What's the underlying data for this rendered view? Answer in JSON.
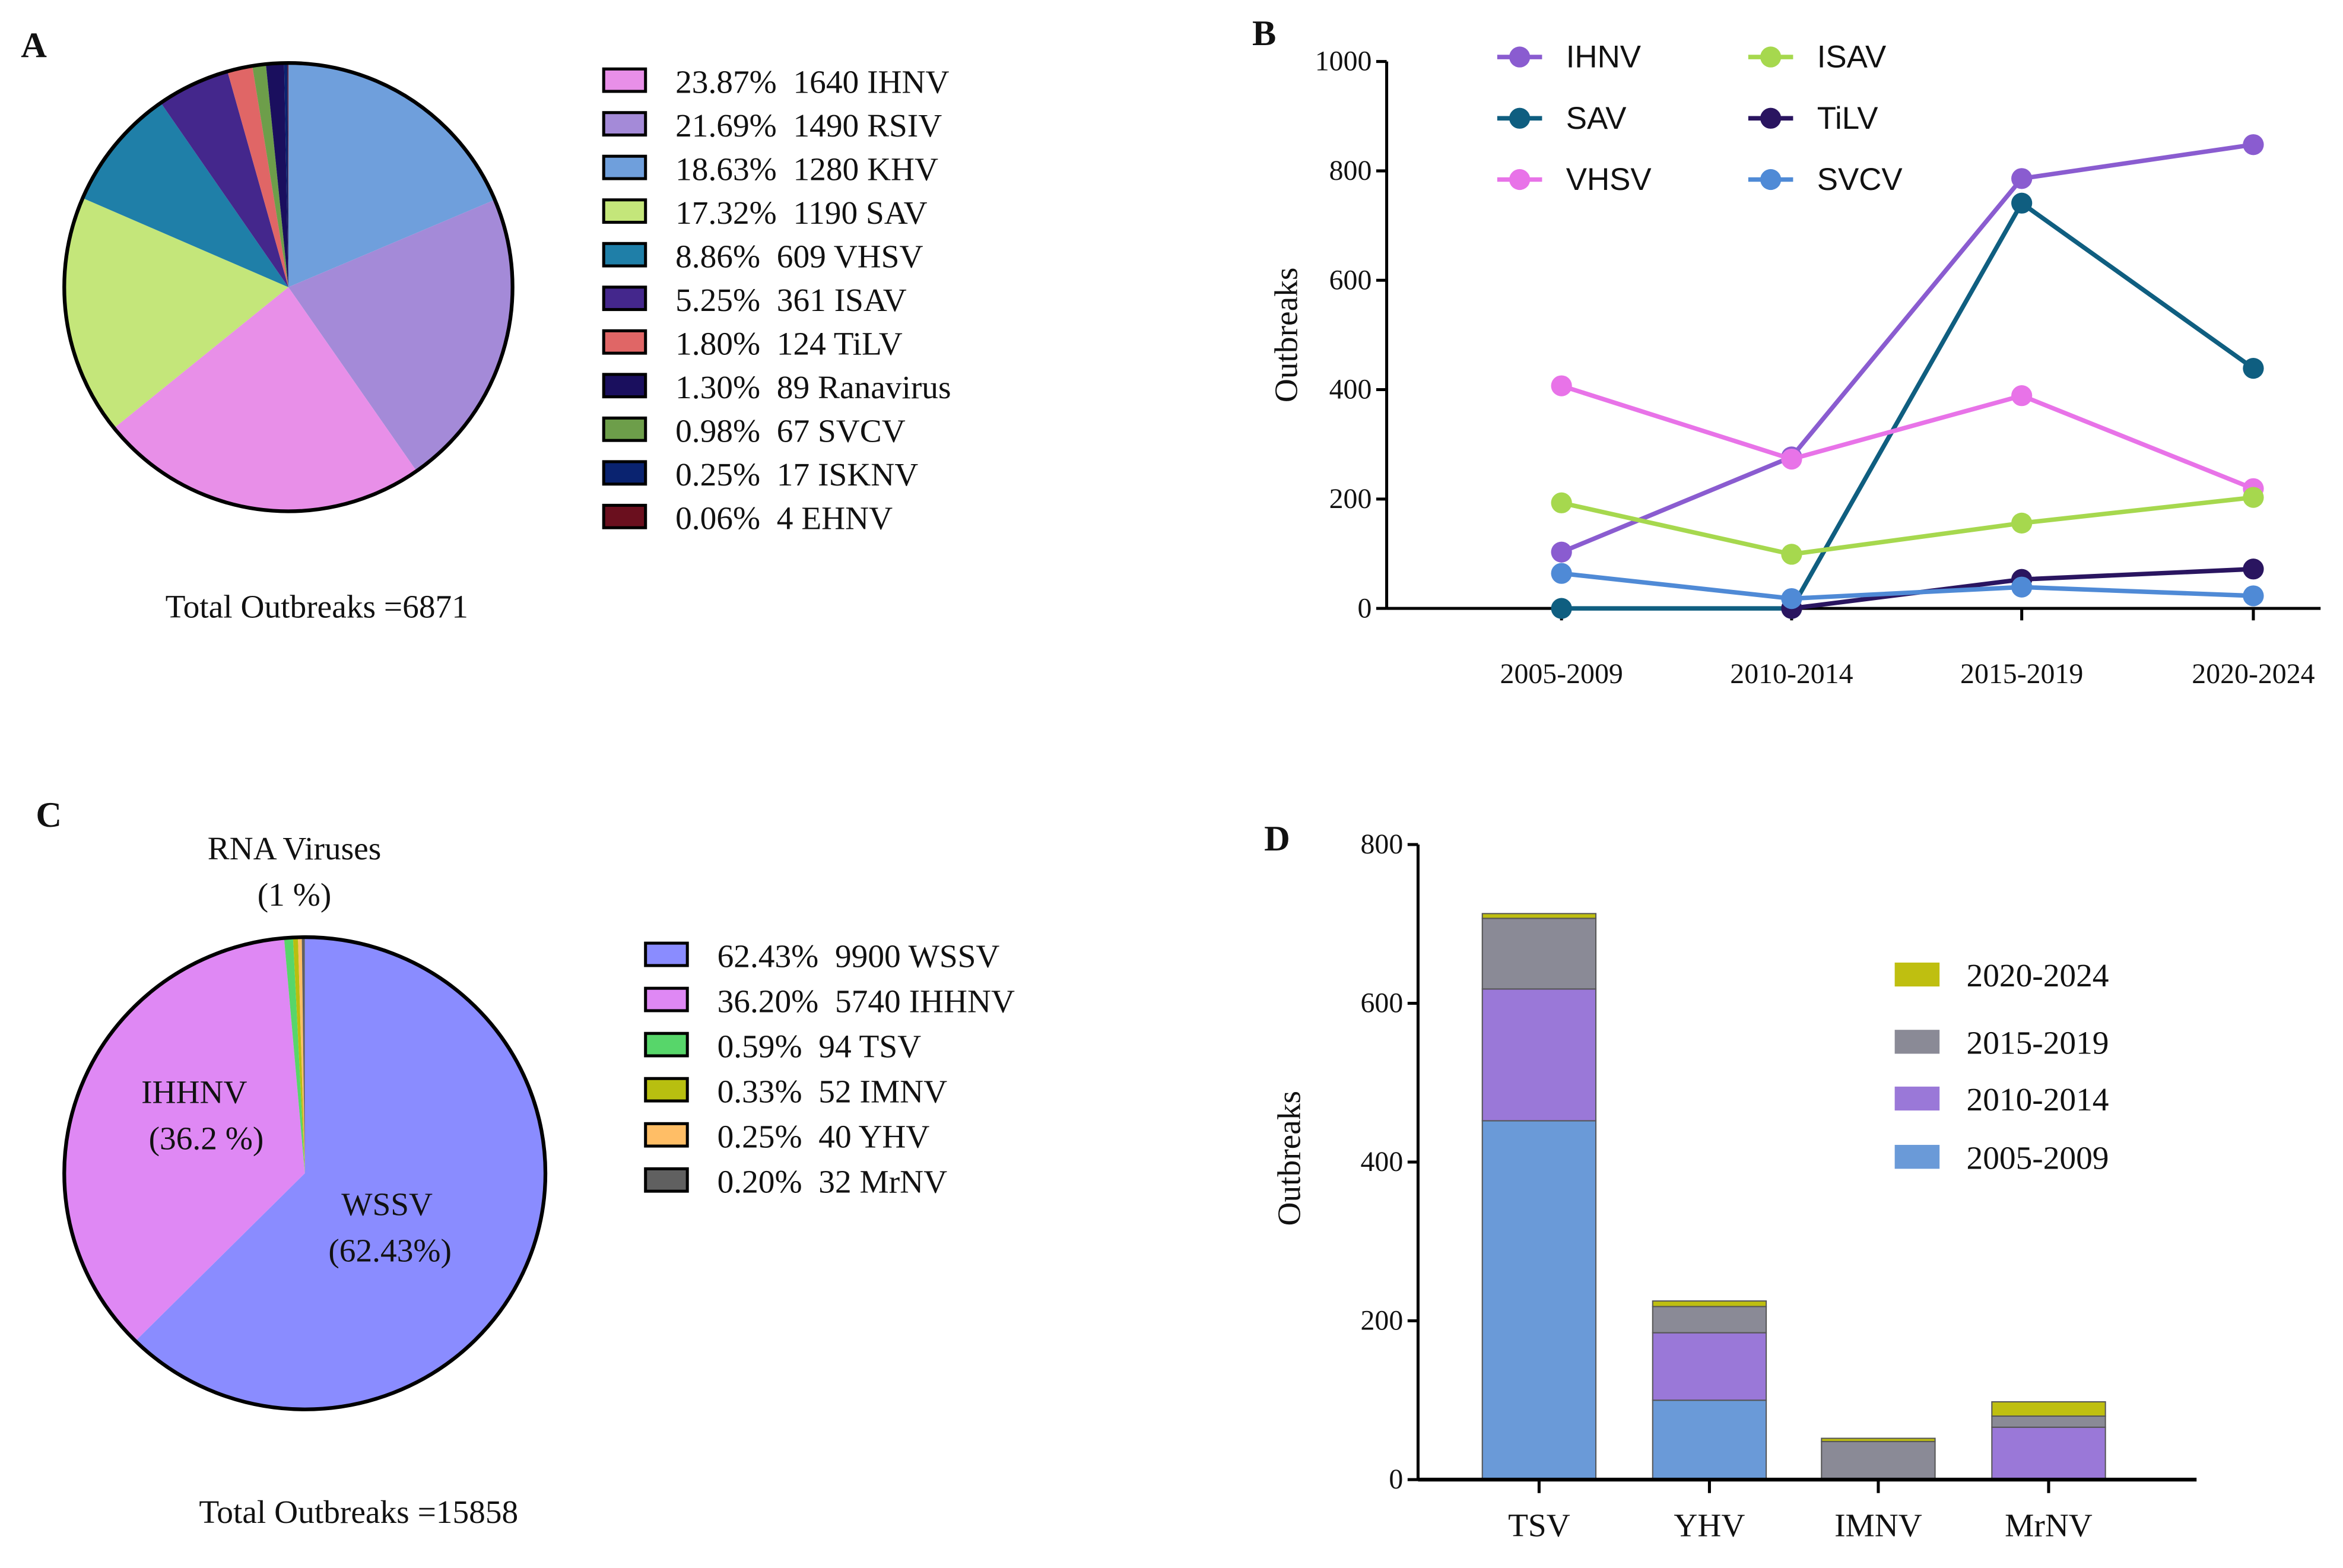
{
  "panels": {
    "a": "A",
    "b": "B",
    "c": "C",
    "d": "D"
  },
  "chart_data": [
    {
      "type": "pie",
      "panel": "A",
      "total_label": "Total Outbreaks =6871",
      "slices": [
        {
          "name": "KHV",
          "count": 1280,
          "percent": 18.63,
          "legend": "18.63%  1280 KHV",
          "color": "#6f9fdc"
        },
        {
          "name": "RSIV",
          "count": 1490,
          "percent": 21.69,
          "legend": "21.69%  1490 RSIV",
          "color": "#a48ad8"
        },
        {
          "name": "IHNV",
          "count": 1640,
          "percent": 23.87,
          "legend": "23.87%  1640 IHNV",
          "color": "#e88fe8"
        },
        {
          "name": "SAV",
          "count": 1190,
          "percent": 17.32,
          "legend": "17.32%  1190 SAV",
          "color": "#c4e67a"
        },
        {
          "name": "VHSV",
          "count": 609,
          "percent": 8.86,
          "legend": "8.86%  609 VHSV",
          "color": "#1f7fa8"
        },
        {
          "name": "ISAV",
          "count": 361,
          "percent": 5.25,
          "legend": "5.25%  361 ISAV",
          "color": "#44278c"
        },
        {
          "name": "TiLV",
          "count": 124,
          "percent": 1.8,
          "legend": "1.80%  124 TiLV",
          "color": "#e06666"
        },
        {
          "name": "SVCV",
          "count": 67,
          "percent": 0.98,
          "legend": "0.98%  67 SVCV",
          "color": "#6d9e4a"
        },
        {
          "name": "Ranavirus",
          "count": 89,
          "percent": 1.3,
          "legend": "1.30%  89 Ranavirus",
          "color": "#1a0f5e"
        },
        {
          "name": "ISKNV",
          "count": 17,
          "percent": 0.25,
          "legend": "0.25%  17 ISKNV",
          "color": "#0a2370"
        },
        {
          "name": "EHNV",
          "count": 4,
          "percent": 0.06,
          "legend": "0.06%  4 EHNV",
          "color": "#6a0f1e"
        }
      ],
      "legend_order": [
        "IHNV",
        "RSIV",
        "KHV",
        "SAV",
        "VHSV",
        "ISAV",
        "TiLV",
        "Ranavirus",
        "SVCV",
        "ISKNV",
        "EHNV"
      ]
    },
    {
      "type": "line",
      "panel": "B",
      "ylabel": "Outbreaks",
      "xlabel": "",
      "ylim": [
        0,
        1000
      ],
      "yticks": [
        0,
        200,
        400,
        600,
        800,
        1000
      ],
      "categories": [
        "2005-2009",
        "2010-2014",
        "2015-2019",
        "2020-2024"
      ],
      "legend_placement": "top-left",
      "series": [
        {
          "name": "IHNV",
          "color": "#8a5cd0",
          "values": [
            103,
            277,
            786,
            848
          ]
        },
        {
          "name": "SAV",
          "color": "#0f5e80",
          "values": [
            0,
            0,
            741,
            439
          ]
        },
        {
          "name": "VHSV",
          "color": "#e873e8",
          "values": [
            407,
            273,
            389,
            219
          ]
        },
        {
          "name": "ISAV",
          "color": "#a6d84e",
          "values": [
            193,
            99,
            156,
            203
          ]
        },
        {
          "name": "TiLV",
          "color": "#2a1560",
          "values": [
            null,
            0,
            53,
            72
          ]
        },
        {
          "name": "SVCV",
          "color": "#4f8ad6",
          "values": [
            64,
            18,
            39,
            23
          ]
        }
      ]
    },
    {
      "type": "pie",
      "panel": "C",
      "total_label": "Total Outbreaks =15858",
      "annotations": {
        "rna_title": "RNA Viruses",
        "rna_pct": "(1 %)",
        "ihhnv_name": "IHHNV",
        "ihhnv_pct": "(36.2 %)",
        "wssv_name": "WSSV",
        "wssv_pct": "(62.43%)"
      },
      "slices": [
        {
          "name": "WSSV",
          "count": 9900,
          "percent": 62.43,
          "legend": "62.43%  9900 WSSV",
          "color": "#8a8cff"
        },
        {
          "name": "IHHNV",
          "count": 5740,
          "percent": 36.2,
          "legend": "36.20%  5740 IHHNV",
          "color": "#df88f4"
        },
        {
          "name": "TSV",
          "count": 94,
          "percent": 0.59,
          "legend": "0.59%  94 TSV",
          "color": "#57d66a"
        },
        {
          "name": "IMNV",
          "count": 52,
          "percent": 0.33,
          "legend": "0.33%  52 IMNV",
          "color": "#b8bf10"
        },
        {
          "name": "YHV",
          "count": 40,
          "percent": 0.25,
          "legend": "0.25%  40 YHV",
          "color": "#ffbe66"
        },
        {
          "name": "MrNV",
          "count": 32,
          "percent": 0.2,
          "legend": "0.20%  32 MrNV",
          "color": "#606060"
        }
      ],
      "legend_order": [
        "WSSV",
        "IHHNV",
        "TSV",
        "IMNV",
        "YHV",
        "MrNV"
      ]
    },
    {
      "type": "bar",
      "stacked": true,
      "panel": "D",
      "ylabel": "Outbreaks",
      "xlabel": "",
      "ylim": [
        0,
        800
      ],
      "yticks": [
        0,
        200,
        400,
        600,
        800
      ],
      "categories": [
        "TSV",
        "YHV",
        "IMNV",
        "MrNV"
      ],
      "legend_placement": "right",
      "series": [
        {
          "name": "2005-2009",
          "color": "#6a9ad8",
          "values": [
            452,
            100,
            0,
            0
          ]
        },
        {
          "name": "2010-2014",
          "color": "#9a78d8",
          "values": [
            166,
            85,
            0,
            66
          ]
        },
        {
          "name": "2015-2019",
          "color": "#8a8a96",
          "values": [
            89,
            33,
            48,
            14
          ]
        },
        {
          "name": "2020-2024",
          "color": "#bfbf10",
          "values": [
            6,
            7,
            4,
            18
          ]
        }
      ],
      "legend_order": [
        "2020-2024",
        "2015-2019",
        "2010-2014",
        "2005-2009"
      ]
    }
  ]
}
